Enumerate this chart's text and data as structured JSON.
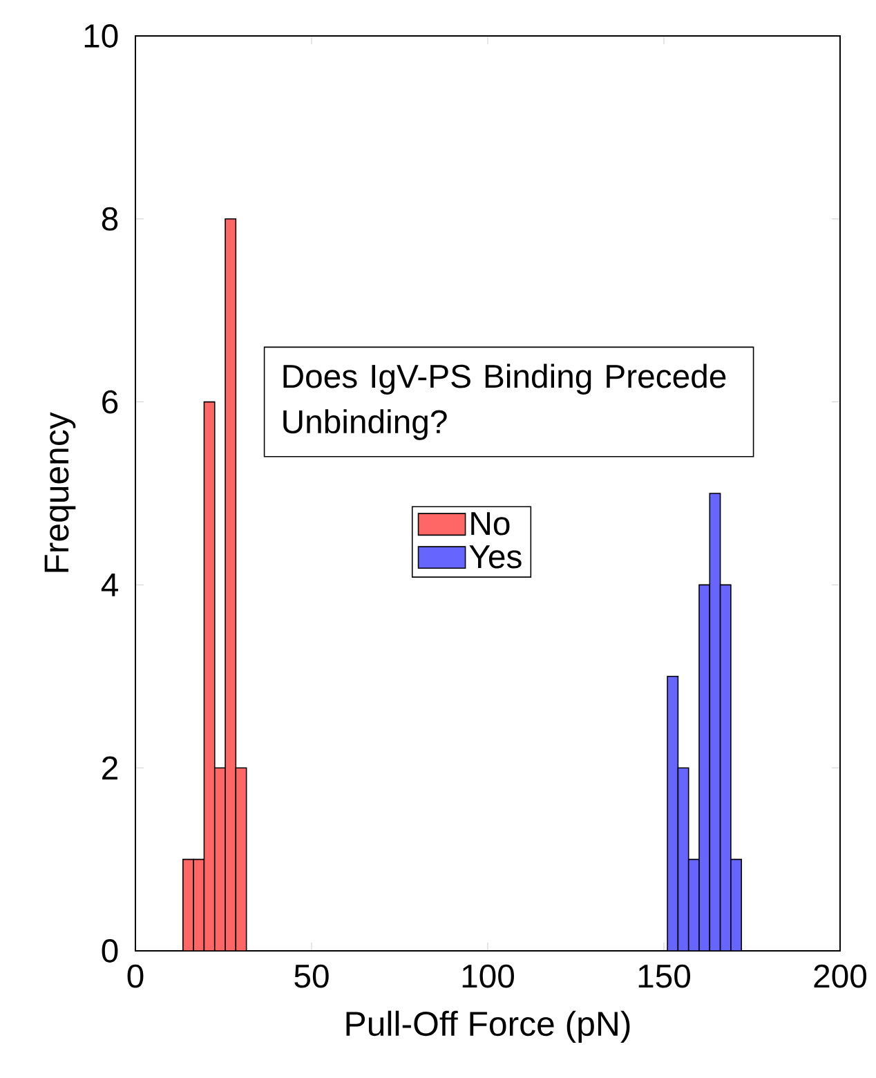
{
  "chart_data": {
    "type": "histogram",
    "xlabel": "Pull-Off Force (pN)",
    "ylabel": "Frequency",
    "legend_title": "Does IgV-PS Binding Precede Unbinding?",
    "bins": [
      13.5,
      16.5,
      19.5,
      22.5,
      25.5,
      28.5,
      31.5,
      151,
      154,
      157,
      160,
      163,
      166,
      169,
      172
    ],
    "series": [
      {
        "name": "No",
        "color": "#ff6666",
        "values": [
          1,
          1,
          6,
          2,
          8,
          2,
          null,
          null,
          null,
          null,
          null,
          null,
          null,
          null
        ]
      },
      {
        "name": "Yes",
        "color": "#6666ff",
        "values": [
          null,
          null,
          null,
          null,
          null,
          null,
          null,
          3,
          2,
          1,
          4,
          5,
          4,
          1
        ]
      }
    ],
    "xlim": [
      0,
      200
    ],
    "ylim": [
      0,
      10
    ],
    "xticks": [
      0,
      50,
      100,
      150,
      200
    ],
    "yticks": [
      0,
      2,
      4,
      6,
      8,
      10
    ],
    "legend": "center"
  }
}
